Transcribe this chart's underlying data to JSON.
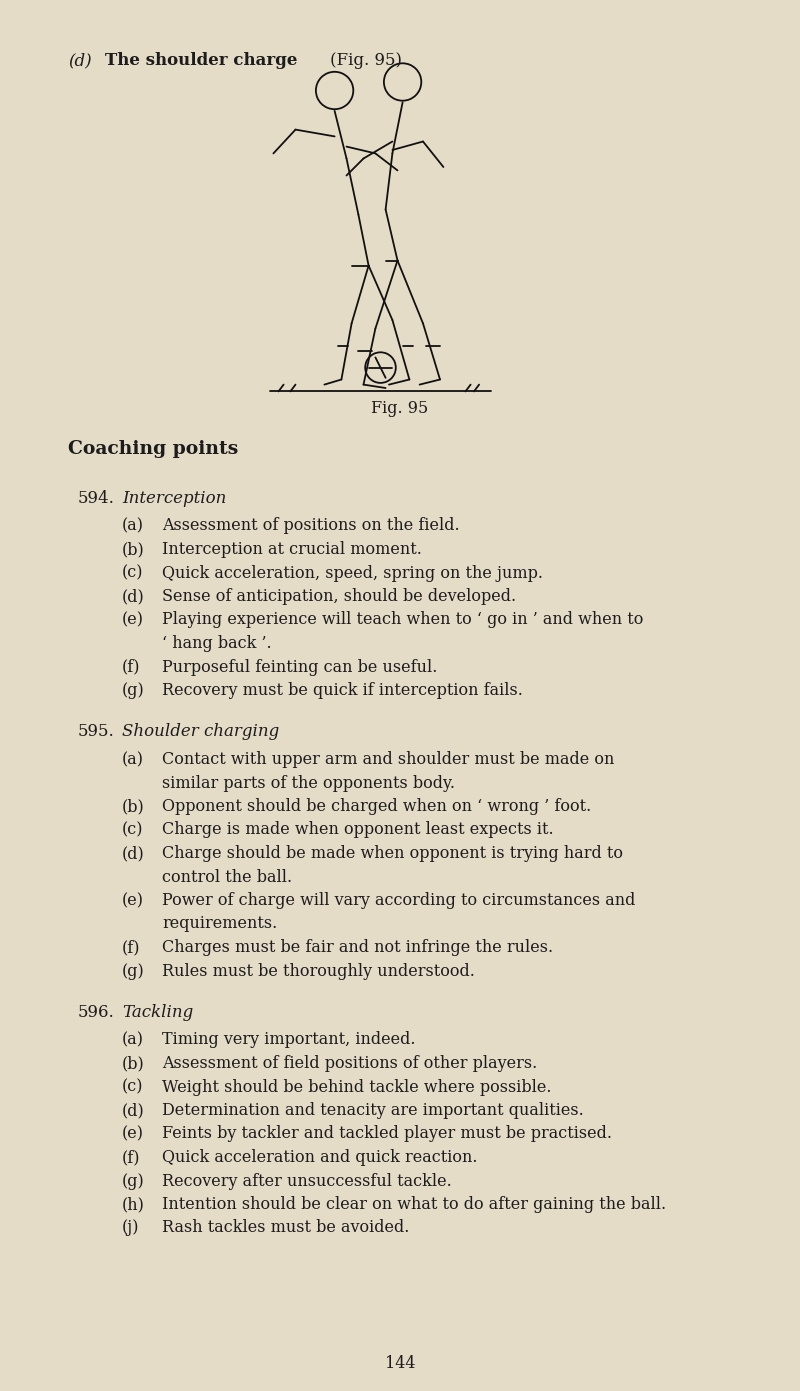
{
  "bg_color": "#e5dcc8",
  "fig_caption": "Fig. 95",
  "coaching_points_header": "Coaching points",
  "sections": [
    {
      "number": "594.",
      "title": "Interception",
      "items": [
        {
          "label": "(a)",
          "text": "Assessment of positions on the field."
        },
        {
          "label": "(b)",
          "text": "Interception at crucial moment."
        },
        {
          "label": "(c)",
          "text": "Quick acceleration, speed, spring on the jump."
        },
        {
          "label": "(d)",
          "text": "Sense of anticipation, should be developed."
        },
        {
          "label": "(e)",
          "text": "Playing experience will teach when to ‘ go in ’ and when to\n        ‘ hang back ’."
        },
        {
          "label": "(f)",
          "text": "Purposeful feinting can be useful."
        },
        {
          "label": "(g)",
          "text": "Recovery must be quick if interception fails."
        }
      ]
    },
    {
      "number": "595.",
      "title": "Shoulder charging",
      "items": [
        {
          "label": "(a)",
          "text": "Contact with upper arm and shoulder must be made on\n        similar parts of the opponents body."
        },
        {
          "label": "(b)",
          "text": "Opponent should be charged when on ‘ wrong ’ foot."
        },
        {
          "label": "(c)",
          "text": "Charge is made when opponent least expects it."
        },
        {
          "label": "(d)",
          "text": "Charge should be made when opponent is trying hard to\n        control the ball."
        },
        {
          "label": "(e)",
          "text": "Power of charge will vary according to circumstances and\n        requirements."
        },
        {
          "label": "(f)",
          "text": "Charges must be fair and not infringe the rules."
        },
        {
          "label": "(g)",
          "text": "Rules must be thoroughly understood."
        }
      ]
    },
    {
      "number": "596.",
      "title": "Tackling",
      "items": [
        {
          "label": "(a)",
          "text": "Timing very important, indeed."
        },
        {
          "label": "(b)",
          "text": "Assessment of field positions of other players."
        },
        {
          "label": "(c)",
          "text": "Weight should be behind tackle where possible."
        },
        {
          "label": "(d)",
          "text": "Determination and tenacity are important qualities."
        },
        {
          "label": "(e)",
          "text": "Feints by tackler and tackled player must be practised."
        },
        {
          "label": "(f)",
          "text": "Quick acceleration and quick reaction."
        },
        {
          "label": "(g)",
          "text": "Recovery after unsuccessful tackle."
        },
        {
          "label": "(h)",
          "text": "Intention should be clear on what to do after gaining the ball."
        },
        {
          "label": "(j)",
          "text": "Rash tackles must be avoided."
        }
      ]
    }
  ],
  "page_number": "144",
  "text_color": "#1c1c1c",
  "font_size_body": 11.5,
  "font_size_header": 13.5,
  "font_size_section": 12.0,
  "font_size_title_line": 12.0
}
